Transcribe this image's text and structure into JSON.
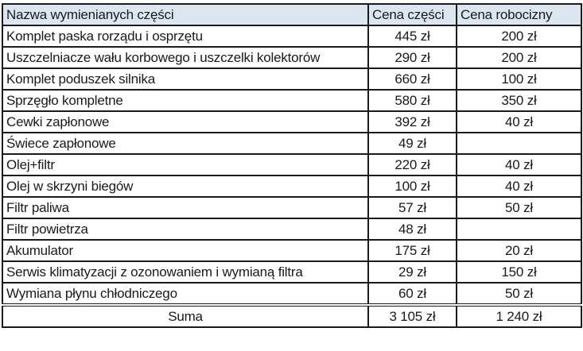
{
  "header": {
    "name": "Nazwa wymienianych części",
    "parts": "Cena części",
    "labor": "Cena robocizny"
  },
  "rows": [
    {
      "name": "Komplet paska rorządu i osprzętu",
      "parts": "445 zł",
      "labor": "200 zł"
    },
    {
      "name": "Uszczelniacze wału korbowego i uszczelki kolektorów",
      "parts": "290 zł",
      "labor": "200 zł"
    },
    {
      "name": "Komplet poduszek silnika",
      "parts": "660 zł",
      "labor": "100 zł"
    },
    {
      "name": "Sprzęgło kompletne",
      "parts": "580 zł",
      "labor": "350 zł"
    },
    {
      "name": "Cewki zapłonowe",
      "parts": "392 zł",
      "labor": "40 zł"
    },
    {
      "name": "Świece zapłonowe",
      "parts": "49 zł",
      "labor": ""
    },
    {
      "name": "Olej+filtr",
      "parts": "220 zł",
      "labor": "40 zł"
    },
    {
      "name": "Olej w skrzyni biegów",
      "parts": "100 zł",
      "labor": "40 zł"
    },
    {
      "name": "Filtr paliwa",
      "parts": "57 zł",
      "labor": "50 zł"
    },
    {
      "name": "Filtr powietrza",
      "parts": "48 zł",
      "labor": ""
    },
    {
      "name": "Akumulator",
      "parts": "175 zł",
      "labor": "20 zł"
    },
    {
      "name": "Serwis klimatyzacji z ozonowaniem i wymianą filtra",
      "parts": "29 zł",
      "labor": "150 zł"
    },
    {
      "name": "Wymiana płynu chłodniczego",
      "parts": "60 zł",
      "labor": "50 zł"
    }
  ],
  "total": {
    "label": "Suma",
    "parts": "3 105 zł",
    "labor": "1 240 zł"
  },
  "colors": {
    "header_bg": "#dce6f1",
    "border": "#1b1b1b"
  }
}
